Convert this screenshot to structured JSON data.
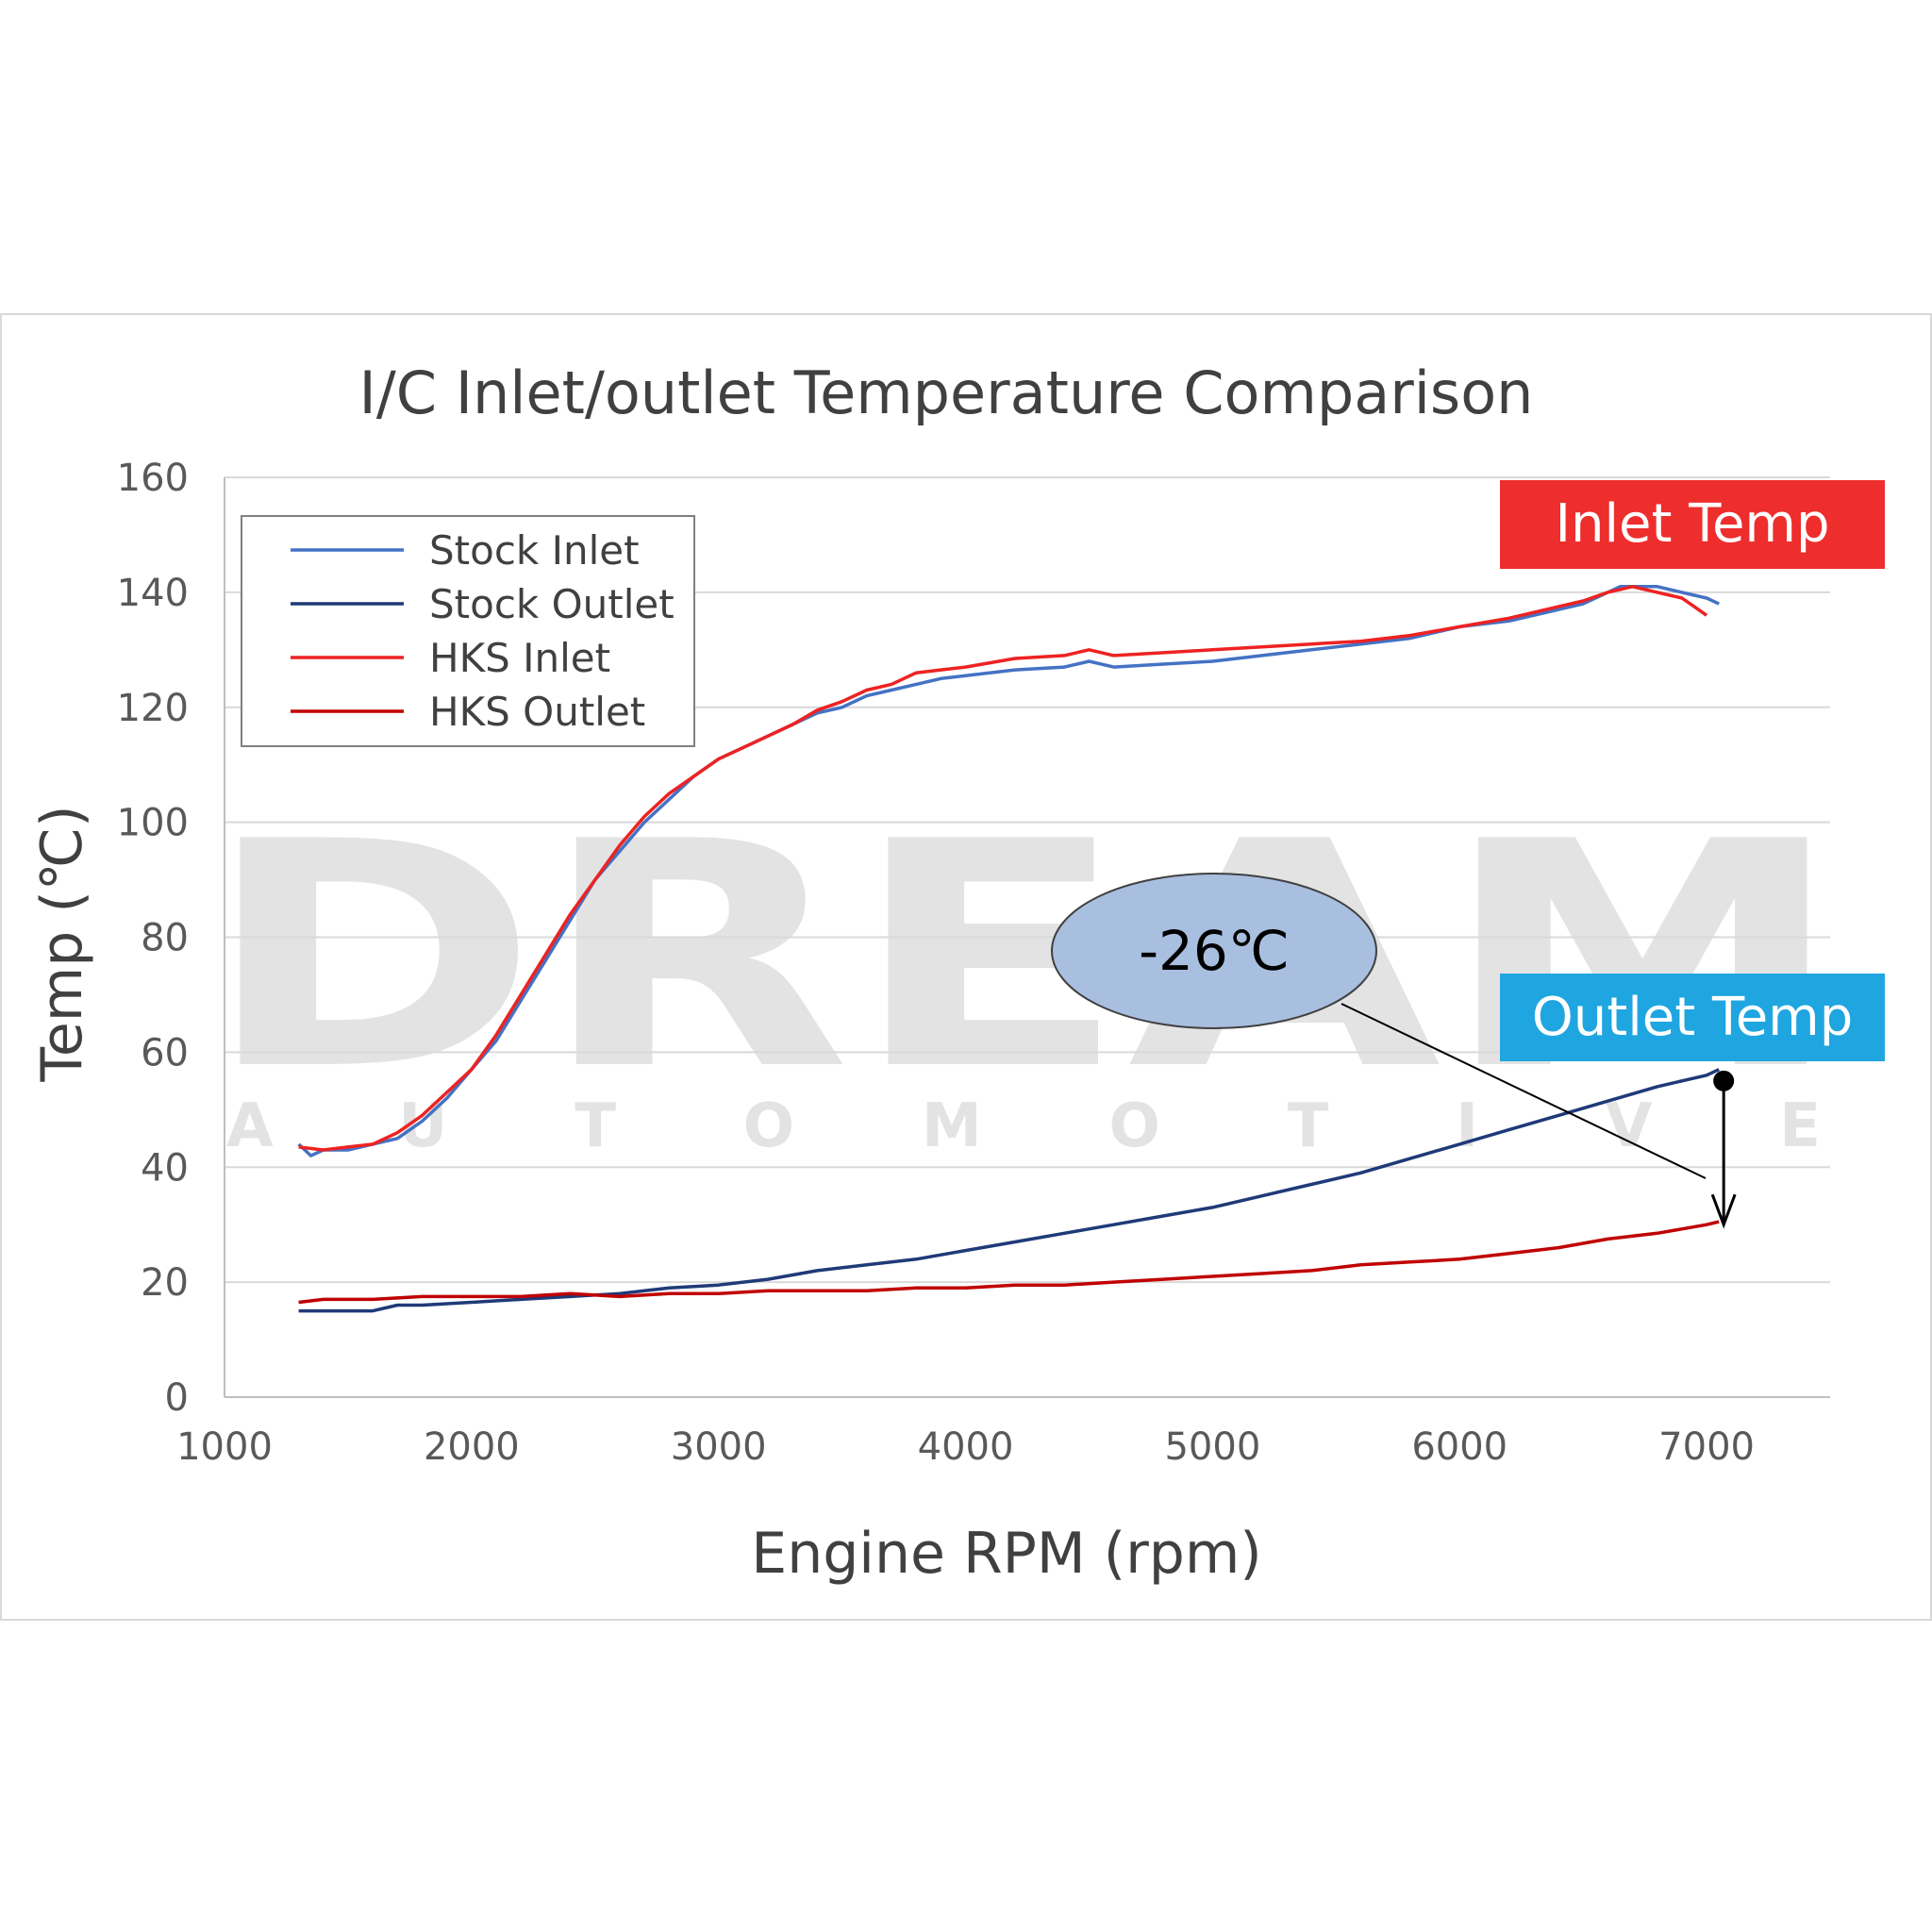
{
  "chart_data": {
    "type": "line",
    "title": "I/C Inlet/outlet Temperature Comparison",
    "xlabel": "Engine RPM (rpm)",
    "ylabel": "Temp (℃)",
    "xlim": [
      1000,
      7500
    ],
    "ylim": [
      0,
      160
    ],
    "x_ticks": [
      "1000",
      "2000",
      "3000",
      "4000",
      "5000",
      "6000",
      "7000"
    ],
    "y_ticks": [
      "0",
      "20",
      "40",
      "60",
      "80",
      "100",
      "120",
      "140",
      "160"
    ],
    "grid": "horizontal",
    "legend_position": "top-left",
    "series": [
      {
        "name": "Stock Inlet",
        "color": "#4472c4",
        "points": [
          [
            1300,
            44
          ],
          [
            1350,
            42
          ],
          [
            1400,
            43
          ],
          [
            1500,
            43
          ],
          [
            1600,
            44
          ],
          [
            1700,
            45
          ],
          [
            1800,
            48
          ],
          [
            1900,
            52
          ],
          [
            2000,
            57
          ],
          [
            2100,
            62
          ],
          [
            2200,
            69
          ],
          [
            2300,
            76
          ],
          [
            2400,
            83
          ],
          [
            2500,
            90
          ],
          [
            2600,
            95
          ],
          [
            2700,
            100
          ],
          [
            2800,
            104
          ],
          [
            2900,
            108
          ],
          [
            3000,
            111
          ],
          [
            3100,
            113
          ],
          [
            3200,
            115
          ],
          [
            3300,
            117
          ],
          [
            3400,
            119
          ],
          [
            3500,
            120
          ],
          [
            3600,
            122
          ],
          [
            3700,
            123
          ],
          [
            3800,
            124
          ],
          [
            3900,
            125
          ],
          [
            4000,
            125.5
          ],
          [
            4200,
            126.5
          ],
          [
            4400,
            127
          ],
          [
            4500,
            128
          ],
          [
            4600,
            127
          ],
          [
            4800,
            127.5
          ],
          [
            5000,
            128
          ],
          [
            5200,
            129
          ],
          [
            5400,
            130
          ],
          [
            5600,
            131
          ],
          [
            5800,
            132
          ],
          [
            6000,
            134
          ],
          [
            6200,
            135
          ],
          [
            6400,
            137
          ],
          [
            6500,
            138
          ],
          [
            6600,
            140
          ],
          [
            6650,
            141
          ],
          [
            6700,
            141
          ],
          [
            6800,
            141
          ],
          [
            6900,
            140
          ],
          [
            7000,
            139
          ],
          [
            7050,
            138
          ]
        ]
      },
      {
        "name": "Stock Outlet",
        "color": "#1f3a78",
        "points": [
          [
            1300,
            15
          ],
          [
            1400,
            15
          ],
          [
            1500,
            15
          ],
          [
            1600,
            15
          ],
          [
            1700,
            16
          ],
          [
            1800,
            16
          ],
          [
            2000,
            16.5
          ],
          [
            2200,
            17
          ],
          [
            2400,
            17.5
          ],
          [
            2600,
            18
          ],
          [
            2800,
            19
          ],
          [
            3000,
            19.5
          ],
          [
            3200,
            20.5
          ],
          [
            3400,
            22
          ],
          [
            3600,
            23
          ],
          [
            3800,
            24
          ],
          [
            4000,
            25.5
          ],
          [
            4200,
            27
          ],
          [
            4400,
            28.5
          ],
          [
            4600,
            30
          ],
          [
            4800,
            31.5
          ],
          [
            5000,
            33
          ],
          [
            5200,
            35
          ],
          [
            5400,
            37
          ],
          [
            5600,
            39
          ],
          [
            5800,
            41.5
          ],
          [
            6000,
            44
          ],
          [
            6200,
            46.5
          ],
          [
            6400,
            49
          ],
          [
            6600,
            51.5
          ],
          [
            6800,
            54
          ],
          [
            7000,
            56
          ],
          [
            7050,
            57
          ]
        ]
      },
      {
        "name": "HKS Inlet",
        "color": "#ee2222",
        "points": [
          [
            1300,
            43.5
          ],
          [
            1400,
            43
          ],
          [
            1500,
            43.5
          ],
          [
            1600,
            44
          ],
          [
            1700,
            46
          ],
          [
            1800,
            49
          ],
          [
            1900,
            53
          ],
          [
            2000,
            57
          ],
          [
            2100,
            63
          ],
          [
            2200,
            70
          ],
          [
            2300,
            77
          ],
          [
            2400,
            84
          ],
          [
            2500,
            90
          ],
          [
            2600,
            96
          ],
          [
            2700,
            101
          ],
          [
            2800,
            105
          ],
          [
            2900,
            108
          ],
          [
            3000,
            111
          ],
          [
            3100,
            113
          ],
          [
            3200,
            115
          ],
          [
            3300,
            117
          ],
          [
            3400,
            119.5
          ],
          [
            3500,
            121
          ],
          [
            3600,
            123
          ],
          [
            3700,
            124
          ],
          [
            3800,
            126
          ],
          [
            3900,
            126.5
          ],
          [
            4000,
            127
          ],
          [
            4200,
            128.5
          ],
          [
            4400,
            129
          ],
          [
            4500,
            130
          ],
          [
            4600,
            129
          ],
          [
            4800,
            129.5
          ],
          [
            5000,
            130
          ],
          [
            5200,
            130.5
          ],
          [
            5400,
            131
          ],
          [
            5600,
            131.5
          ],
          [
            5800,
            132.5
          ],
          [
            6000,
            134
          ],
          [
            6200,
            135.5
          ],
          [
            6400,
            137.5
          ],
          [
            6500,
            138.5
          ],
          [
            6600,
            140
          ],
          [
            6700,
            141
          ],
          [
            6800,
            140
          ],
          [
            6900,
            139
          ],
          [
            6950,
            137.5
          ],
          [
            7000,
            136
          ]
        ]
      },
      {
        "name": "HKS Outlet",
        "color": "#c00000",
        "points": [
          [
            1300,
            16.5
          ],
          [
            1400,
            17
          ],
          [
            1600,
            17
          ],
          [
            1800,
            17.5
          ],
          [
            2000,
            17.5
          ],
          [
            2200,
            17.5
          ],
          [
            2400,
            18
          ],
          [
            2600,
            17.5
          ],
          [
            2800,
            18
          ],
          [
            3000,
            18
          ],
          [
            3200,
            18.5
          ],
          [
            3400,
            18.5
          ],
          [
            3600,
            18.5
          ],
          [
            3800,
            19
          ],
          [
            4000,
            19
          ],
          [
            4200,
            19.5
          ],
          [
            4400,
            19.5
          ],
          [
            4600,
            20
          ],
          [
            4800,
            20.5
          ],
          [
            5000,
            21
          ],
          [
            5200,
            21.5
          ],
          [
            5400,
            22
          ],
          [
            5600,
            23
          ],
          [
            5800,
            23.5
          ],
          [
            6000,
            24
          ],
          [
            6200,
            25
          ],
          [
            6400,
            26
          ],
          [
            6600,
            27.5
          ],
          [
            6800,
            28.5
          ],
          [
            7000,
            30
          ],
          [
            7050,
            30.5
          ]
        ]
      }
    ],
    "annotations": {
      "inlet_label": {
        "text": "Inlet Temp",
        "color": "#ee2d2d"
      },
      "outlet_label": {
        "text": "Outlet Temp",
        "color": "#1fa6e0"
      },
      "difference_callout": {
        "text": "-26℃",
        "fill": "#a9bfe0",
        "from": [
          7050,
          55
        ],
        "to": [
          7050,
          30
        ]
      }
    }
  },
  "watermark": {
    "main": "DREAM",
    "sub": "AUTOMOTIVE"
  }
}
